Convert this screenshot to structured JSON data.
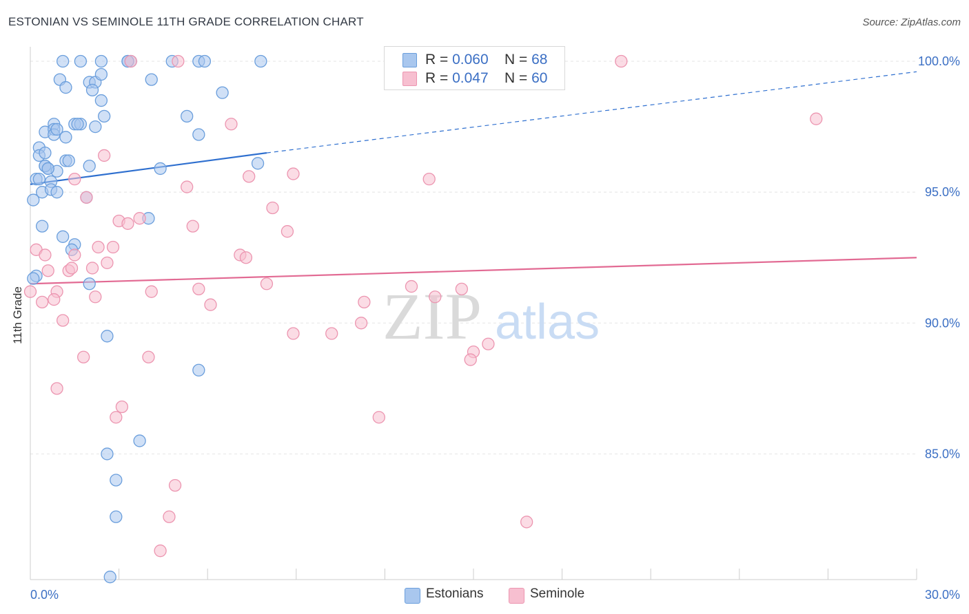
{
  "header": {
    "title": "ESTONIAN VS SEMINOLE 11TH GRADE CORRELATION CHART",
    "source": "Source: ZipAtlas.com"
  },
  "watermark": {
    "part1": "ZIP",
    "part2": "atlas"
  },
  "colors": {
    "blue_fill": "#a9c7ee",
    "blue_stroke": "#6a9edc",
    "blue_line": "#2e6fcf",
    "pink_fill": "#f7bfd0",
    "pink_stroke": "#ec95b0",
    "pink_line": "#e26a93",
    "tick_label": "#3b6fc4",
    "grid": "#e4e4e4"
  },
  "legend_top": [
    {
      "r_label": "R = ",
      "r_value": "0.060",
      "n_label": "N = ",
      "n_value": "68"
    },
    {
      "r_label": "R = ",
      "r_value": "0.047",
      "n_label": "N = ",
      "n_value": "60"
    }
  ],
  "legend_bottom": [
    "Estonians",
    "Seminole"
  ],
  "chart_data": {
    "type": "scatter",
    "title": "ESTONIAN VS SEMINOLE 11TH GRADE CORRELATION CHART",
    "xlabel": "",
    "ylabel": "11th Grade",
    "xlim": [
      0,
      30
    ],
    "ylim": [
      80.2,
      100.5
    ],
    "x_tick_labels": [
      "0.0%",
      "30.0%"
    ],
    "y_ticks": [
      85,
      90,
      95,
      100
    ],
    "y_tick_labels": [
      "85.0%",
      "90.0%",
      "95.0%",
      "100.0%"
    ],
    "grid": true,
    "series": [
      {
        "name": "Estonians",
        "color": "blue",
        "R": 0.06,
        "N": 68,
        "trend": {
          "x0": 0,
          "y0": 95.3,
          "x1": 8.0,
          "y1": 96.5,
          "dash_to_x": 30,
          "dash_to_y": 99.6
        },
        "points": [
          [
            1.1,
            100
          ],
          [
            1.7,
            100
          ],
          [
            2.4,
            100
          ],
          [
            3.3,
            100
          ],
          [
            3.4,
            100
          ],
          [
            4.8,
            100
          ],
          [
            5.7,
            100
          ],
          [
            5.9,
            100
          ],
          [
            7.8,
            100
          ],
          [
            2.0,
            99.2
          ],
          [
            2.2,
            99.2
          ],
          [
            2.4,
            99.5
          ],
          [
            1.0,
            99.3
          ],
          [
            1.2,
            99.0
          ],
          [
            2.1,
            98.9
          ],
          [
            4.1,
            99.3
          ],
          [
            2.4,
            98.5
          ],
          [
            6.5,
            98.8
          ],
          [
            2.5,
            97.9
          ],
          [
            5.3,
            97.9
          ],
          [
            0.8,
            97.6
          ],
          [
            1.5,
            97.6
          ],
          [
            1.7,
            97.6
          ],
          [
            0.5,
            97.3
          ],
          [
            0.8,
            97.4
          ],
          [
            2.2,
            97.5
          ],
          [
            5.7,
            97.2
          ],
          [
            0.8,
            97.2
          ],
          [
            1.2,
            97.1
          ],
          [
            0.3,
            96.7
          ],
          [
            0.3,
            96.4
          ],
          [
            0.5,
            96.5
          ],
          [
            1.2,
            96.2
          ],
          [
            0.5,
            96.0
          ],
          [
            0.6,
            95.9
          ],
          [
            0.9,
            95.8
          ],
          [
            2.0,
            96.0
          ],
          [
            4.4,
            95.9
          ],
          [
            7.7,
            96.1
          ],
          [
            0.2,
            95.5
          ],
          [
            0.3,
            95.5
          ],
          [
            0.7,
            95.4
          ],
          [
            0.4,
            95.0
          ],
          [
            0.7,
            95.1
          ],
          [
            0.9,
            95.0
          ],
          [
            0.1,
            94.7
          ],
          [
            1.9,
            94.8
          ],
          [
            4.0,
            94.0
          ],
          [
            0.4,
            93.7
          ],
          [
            1.1,
            93.3
          ],
          [
            1.5,
            93.0
          ],
          [
            1.4,
            92.8
          ],
          [
            0.2,
            91.8
          ],
          [
            2.0,
            91.5
          ],
          [
            2.6,
            89.5
          ],
          [
            5.7,
            88.2
          ],
          [
            3.7,
            85.5
          ],
          [
            2.6,
            85.0
          ],
          [
            2.9,
            84.0
          ],
          [
            2.9,
            82.6
          ],
          [
            2.7,
            80.3
          ],
          [
            0.1,
            91.7
          ],
          [
            1.6,
            97.6
          ],
          [
            0.5,
            96.0
          ],
          [
            3.3,
            100
          ],
          [
            0.6,
            95.9
          ],
          [
            0.9,
            97.4
          ],
          [
            1.3,
            96.2
          ]
        ]
      },
      {
        "name": "Seminole",
        "color": "pink",
        "R": 0.047,
        "N": 60,
        "trend": {
          "x0": 0,
          "y0": 91.5,
          "x1": 30,
          "y1": 92.5
        },
        "points": [
          [
            3.4,
            100
          ],
          [
            5.0,
            100
          ],
          [
            20.0,
            100
          ],
          [
            26.6,
            97.8
          ],
          [
            6.8,
            97.6
          ],
          [
            2.5,
            96.4
          ],
          [
            7.4,
            95.6
          ],
          [
            8.9,
            95.7
          ],
          [
            13.5,
            95.5
          ],
          [
            1.5,
            95.5
          ],
          [
            5.3,
            95.2
          ],
          [
            1.9,
            94.8
          ],
          [
            8.2,
            94.4
          ],
          [
            3.7,
            94.0
          ],
          [
            3.0,
            93.9
          ],
          [
            3.3,
            93.8
          ],
          [
            5.5,
            93.7
          ],
          [
            8.7,
            93.5
          ],
          [
            0.2,
            92.8
          ],
          [
            0.5,
            92.6
          ],
          [
            1.5,
            92.6
          ],
          [
            2.3,
            92.9
          ],
          [
            2.8,
            92.9
          ],
          [
            7.1,
            92.6
          ],
          [
            7.3,
            92.5
          ],
          [
            0.6,
            92.0
          ],
          [
            1.3,
            92.0
          ],
          [
            1.4,
            92.1
          ],
          [
            2.6,
            92.3
          ],
          [
            2.1,
            92.1
          ],
          [
            0.9,
            91.2
          ],
          [
            4.1,
            91.2
          ],
          [
            5.7,
            91.3
          ],
          [
            8.0,
            91.5
          ],
          [
            12.9,
            91.4
          ],
          [
            14.6,
            91.3
          ],
          [
            2.2,
            91.0
          ],
          [
            13.7,
            91.0
          ],
          [
            0.4,
            90.8
          ],
          [
            0.8,
            90.9
          ],
          [
            6.1,
            90.7
          ],
          [
            11.3,
            90.8
          ],
          [
            1.1,
            90.1
          ],
          [
            11.2,
            90.0
          ],
          [
            8.9,
            89.6
          ],
          [
            10.2,
            89.6
          ],
          [
            15.5,
            89.2
          ],
          [
            15.0,
            88.9
          ],
          [
            14.9,
            88.6
          ],
          [
            1.8,
            88.7
          ],
          [
            4.0,
            88.7
          ],
          [
            0.9,
            87.5
          ],
          [
            3.1,
            86.8
          ],
          [
            2.9,
            86.4
          ],
          [
            11.8,
            86.4
          ],
          [
            4.9,
            83.8
          ],
          [
            4.7,
            82.6
          ],
          [
            16.8,
            82.4
          ],
          [
            4.4,
            81.3
          ],
          [
            0.0,
            91.2
          ]
        ]
      }
    ]
  }
}
